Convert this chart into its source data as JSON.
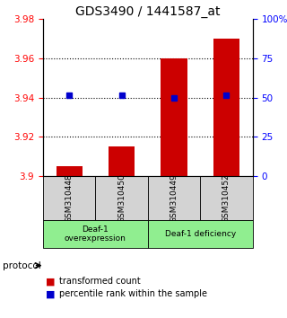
{
  "title": "GDS3490 / 1441587_at",
  "samples": [
    "GSM310448",
    "GSM310450",
    "GSM310449",
    "GSM310452"
  ],
  "red_values": [
    3.905,
    3.915,
    3.96,
    3.97
  ],
  "blue_values": [
    3.941,
    3.941,
    3.94,
    3.941
  ],
  "ymin": 3.9,
  "ymax": 3.98,
  "yticks": [
    3.9,
    3.92,
    3.94,
    3.96,
    3.98
  ],
  "ytick_labels": [
    "3.9",
    "3.92",
    "3.94",
    "3.96",
    "3.98"
  ],
  "y2min": 0,
  "y2max": 100,
  "y2ticks": [
    0,
    25,
    50,
    75,
    100
  ],
  "y2ticklabels": [
    "0",
    "25",
    "50",
    "75",
    "100%"
  ],
  "dotted_lines": [
    3.92,
    3.94,
    3.96
  ],
  "bar_color": "#cc0000",
  "dot_color": "#0000cc",
  "group1_label": "Deaf-1\noverexpression",
  "group2_label": "Deaf-1 deficiency",
  "protocol_label": "protocol",
  "legend_red": "transformed count",
  "legend_blue": "percentile rank within the sample",
  "group_bg_color": "#90ee90",
  "sample_bg_color": "#d3d3d3",
  "bar_width": 0.5,
  "title_fontsize": 10
}
